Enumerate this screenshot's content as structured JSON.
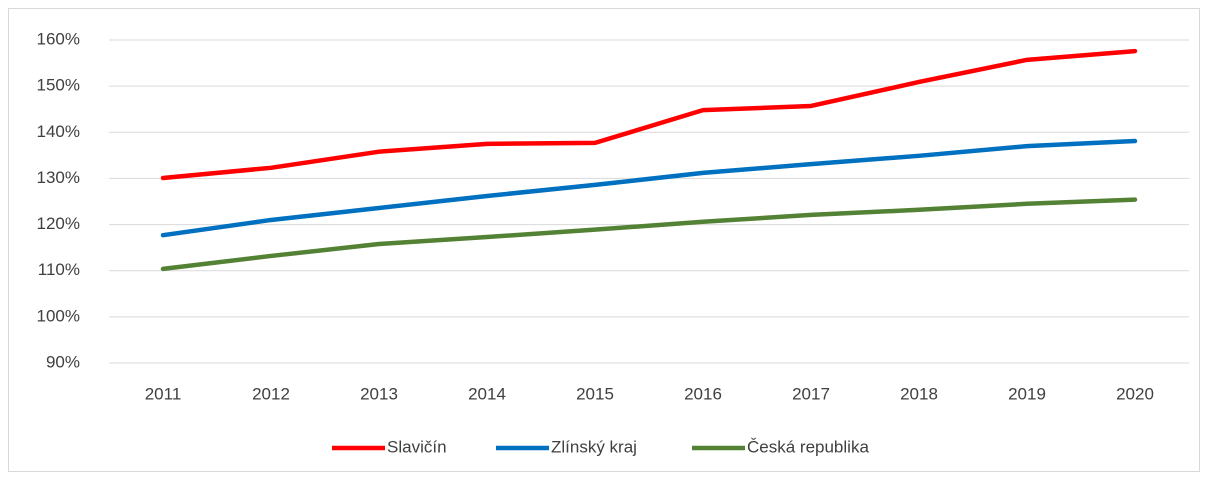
{
  "chart_data": {
    "type": "line",
    "categories": [
      "2011",
      "2012",
      "2013",
      "2014",
      "2015",
      "2016",
      "2017",
      "2018",
      "2019",
      "2020"
    ],
    "series": [
      {
        "name": "Slavičín",
        "color": "#ff0000",
        "values": [
          130.1,
          132.3,
          135.8,
          137.5,
          137.7,
          144.8,
          145.7,
          150.9,
          155.7,
          157.6
        ]
      },
      {
        "name": "Zlínský kraj",
        "color": "#0070c0",
        "values": [
          117.7,
          121.0,
          123.6,
          126.2,
          128.6,
          131.2,
          133.1,
          134.9,
          137.0,
          138.1
        ]
      },
      {
        "name": "Česká republika",
        "color": "#548235",
        "values": [
          110.4,
          113.2,
          115.8,
          117.3,
          118.9,
          120.6,
          122.1,
          123.2,
          124.5,
          125.4
        ]
      }
    ],
    "ylim": [
      90,
      160
    ],
    "yticks": [
      {
        "value": 90,
        "label": "90%"
      },
      {
        "value": 100,
        "label": "100%"
      },
      {
        "value": 110,
        "label": "110%"
      },
      {
        "value": 120,
        "label": "120%"
      },
      {
        "value": 130,
        "label": "130%"
      },
      {
        "value": 140,
        "label": "140%"
      },
      {
        "value": 150,
        "label": "150%"
      },
      {
        "value": 160,
        "label": "160%"
      }
    ],
    "grid": true,
    "legend": "bottom"
  }
}
